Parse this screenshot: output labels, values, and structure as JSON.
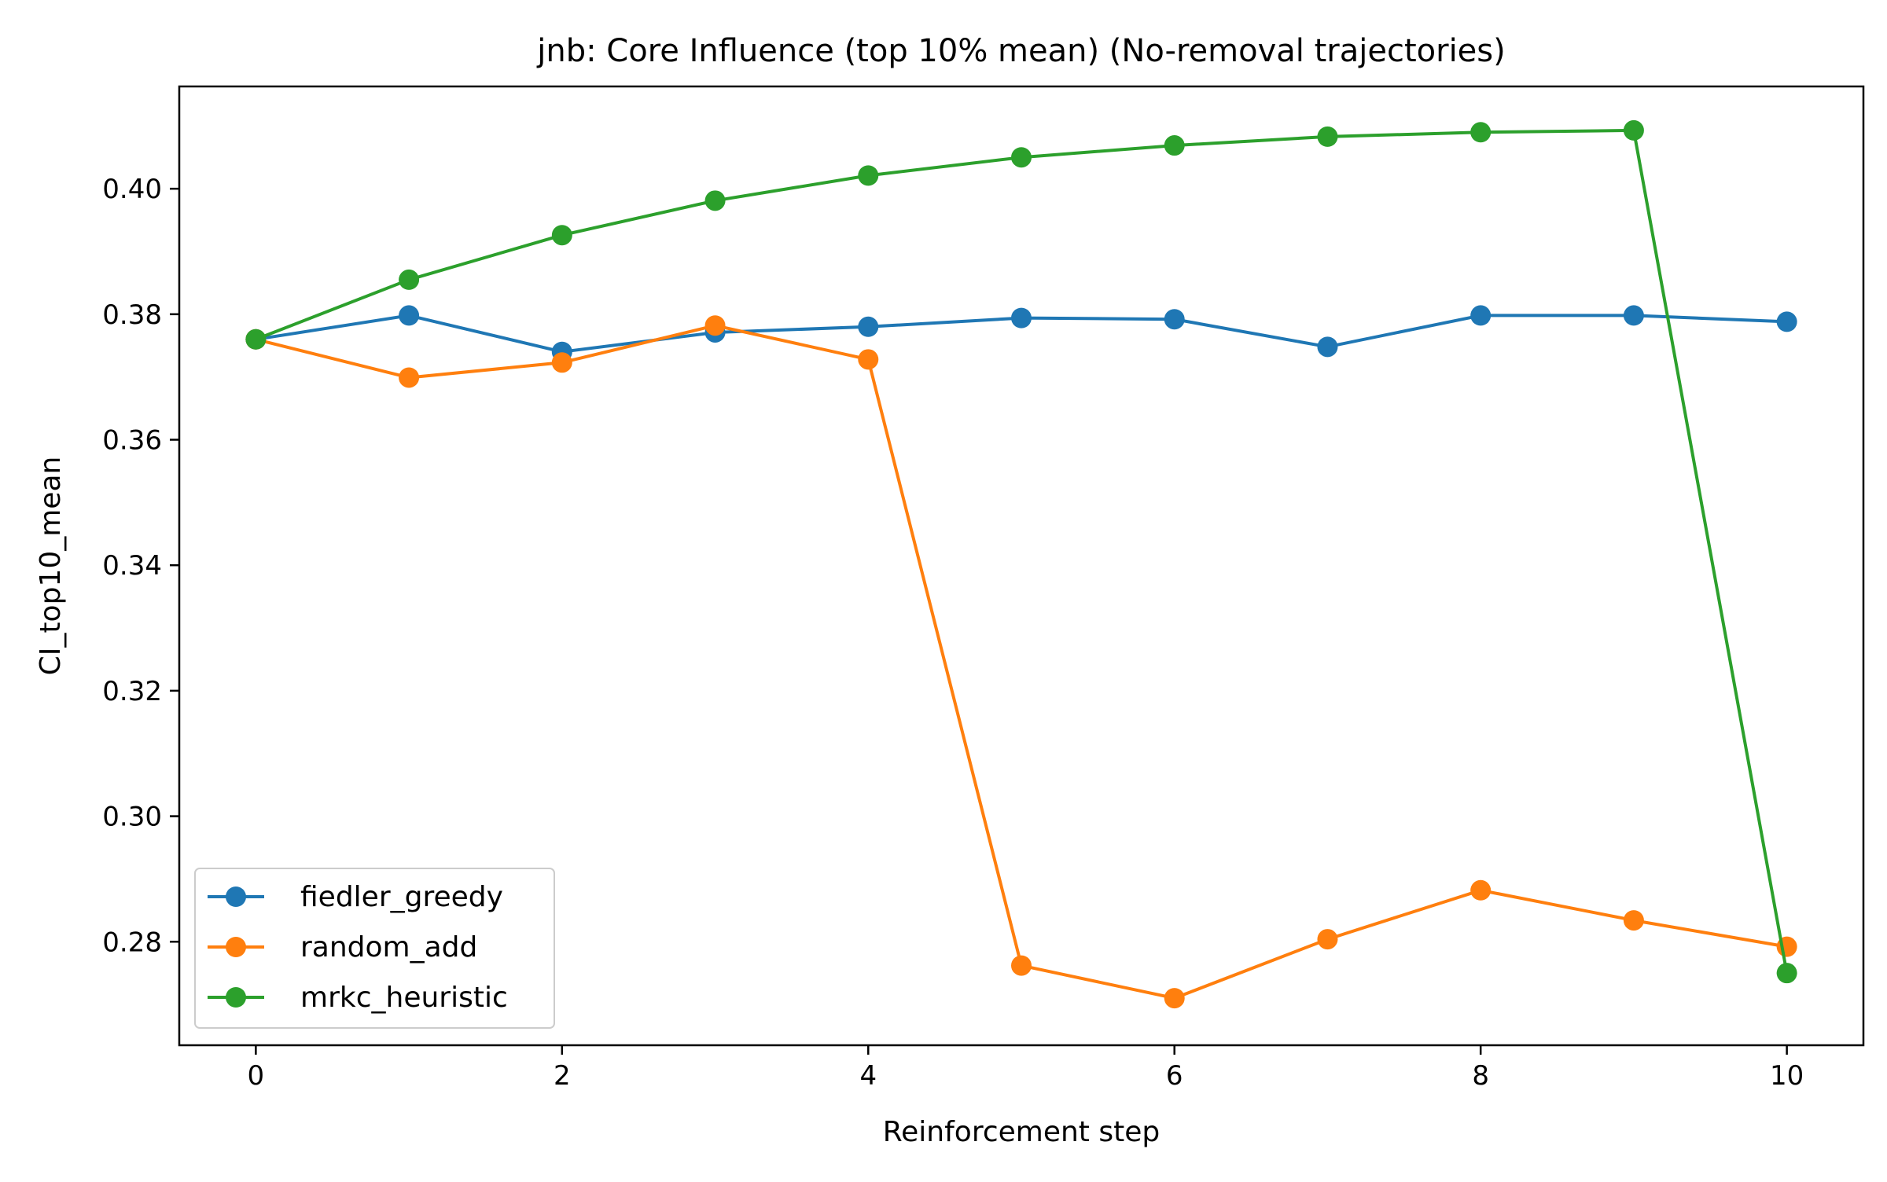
{
  "chart_data": {
    "type": "line",
    "title": "jnb: Core Influence (top 10% mean) (No-removal trajectories)",
    "xlabel": "Reinforcement step",
    "ylabel": "CI_top10_mean",
    "xlim": [
      -0.5,
      10.5
    ],
    "ylim": [
      0.2635,
      0.4163
    ],
    "xticks": [
      0,
      2,
      4,
      6,
      8,
      10
    ],
    "yticks": [
      0.28,
      0.3,
      0.32,
      0.34,
      0.36,
      0.38,
      0.4
    ],
    "ytick_format": 2,
    "grid": false,
    "legend_position": "lower left",
    "x": [
      0,
      1,
      2,
      3,
      4,
      5,
      6,
      7,
      8,
      9,
      10
    ],
    "series": [
      {
        "name": "fiedler_greedy",
        "color": "#1f77b4",
        "marker": "circle",
        "values": [
          0.376,
          0.3798,
          0.374,
          0.3771,
          0.378,
          0.3794,
          0.3792,
          0.3748,
          0.3798,
          0.3798,
          0.3788
        ]
      },
      {
        "name": "random_add",
        "color": "#ff7f0e",
        "marker": "circle",
        "values": [
          0.376,
          0.3699,
          0.3723,
          0.3782,
          0.3728,
          0.2762,
          0.271,
          0.2804,
          0.2882,
          0.2834,
          0.2792
        ]
      },
      {
        "name": "mrkc_heuristic",
        "color": "#2ca02c",
        "marker": "circle",
        "values": [
          0.376,
          0.3855,
          0.3926,
          0.3981,
          0.4021,
          0.405,
          0.4069,
          0.4083,
          0.409,
          0.4093,
          0.275
        ]
      }
    ]
  }
}
